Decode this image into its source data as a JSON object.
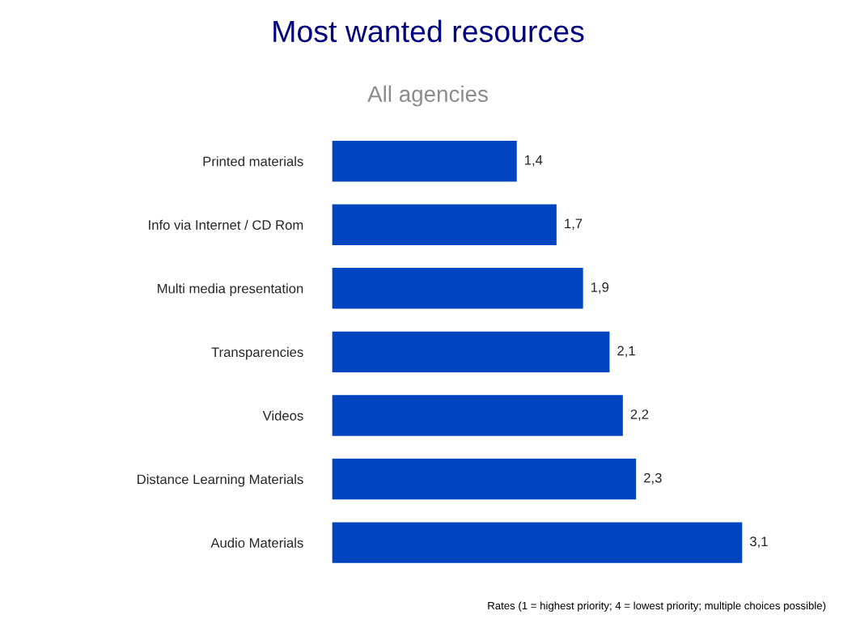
{
  "chart_data": {
    "type": "bar",
    "orientation": "horizontal",
    "title": "Most wanted resources",
    "subtitle": "All agencies",
    "categories": [
      "Printed materials",
      "Info via Internet / CD Rom",
      "Multi media presentation",
      "Transparencies",
      "Videos",
      "Distance Learning Materials",
      "Audio Materials"
    ],
    "values": [
      1.4,
      1.7,
      1.9,
      2.1,
      2.2,
      2.3,
      3.1
    ],
    "value_labels": [
      "1,4",
      "1,7",
      "1,9",
      "2,1",
      "2,2",
      "2,3",
      "3,1"
    ],
    "color": "#0044c0",
    "annotations": [
      "Rates (1 = highest priority; 4 = lowest priority; multiple choices possible)"
    ]
  }
}
